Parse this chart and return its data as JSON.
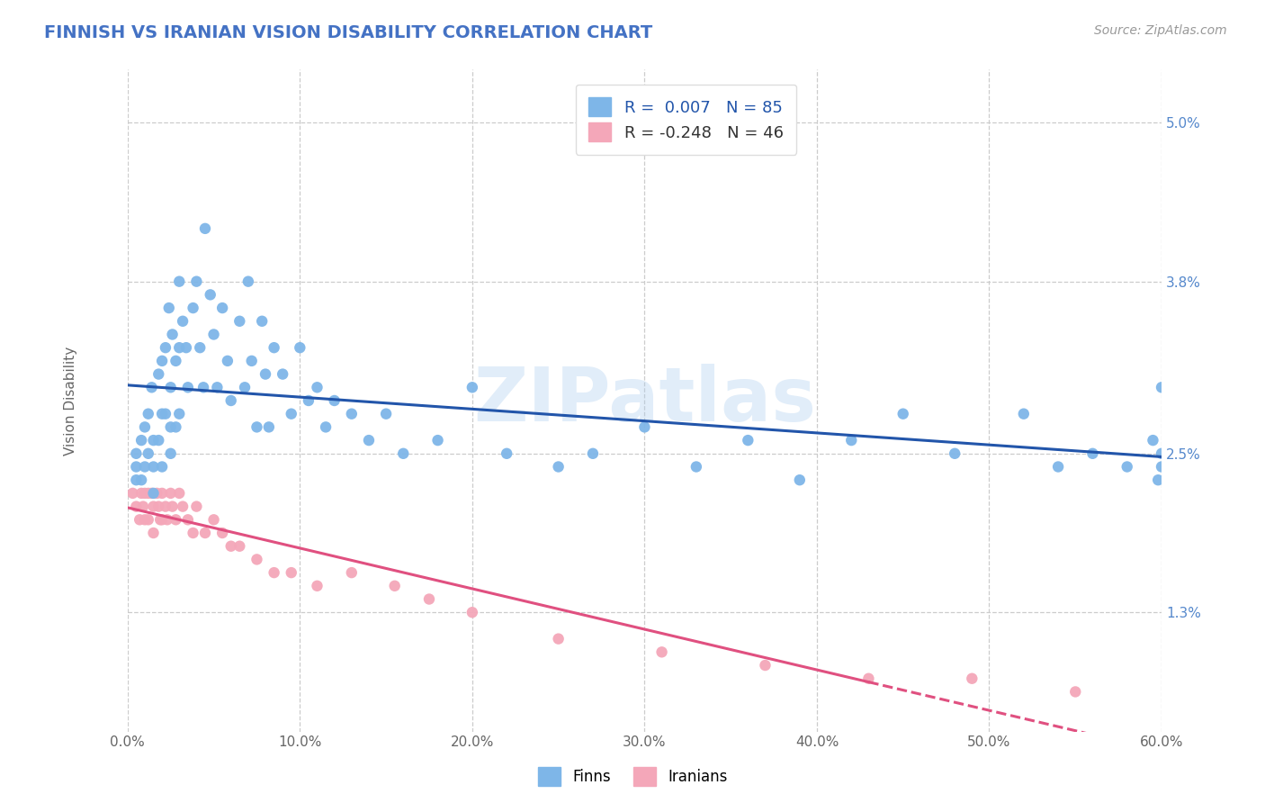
{
  "title": "FINNISH VS IRANIAN VISION DISABILITY CORRELATION CHART",
  "source": "Source: ZipAtlas.com",
  "ylabel": "Vision Disability",
  "xlim": [
    0.0,
    0.6
  ],
  "ylim": [
    0.004,
    0.054
  ],
  "yticks": [
    0.013,
    0.025,
    0.038,
    0.05
  ],
  "ytick_labels": [
    "1.3%",
    "2.5%",
    "3.8%",
    "5.0%"
  ],
  "xticks": [
    0.0,
    0.1,
    0.2,
    0.3,
    0.4,
    0.5,
    0.6
  ],
  "xtick_labels": [
    "0.0%",
    "10.0%",
    "20.0%",
    "30.0%",
    "40.0%",
    "50.0%",
    "60.0%"
  ],
  "finns_color": "#7EB6E8",
  "iranians_color": "#F4A7B9",
  "finn_line_color": "#2255AA",
  "iranian_line_color": "#E05080",
  "R_finn": 0.007,
  "N_finn": 85,
  "R_iran": -0.248,
  "N_iran": 46,
  "background_color": "#FFFFFF",
  "grid_color": "#CCCCCC",
  "title_color": "#4472C4",
  "finns_scatter_x": [
    0.005,
    0.005,
    0.005,
    0.008,
    0.008,
    0.01,
    0.01,
    0.012,
    0.012,
    0.014,
    0.015,
    0.015,
    0.015,
    0.018,
    0.018,
    0.02,
    0.02,
    0.02,
    0.022,
    0.022,
    0.024,
    0.025,
    0.025,
    0.025,
    0.026,
    0.028,
    0.028,
    0.03,
    0.03,
    0.03,
    0.032,
    0.034,
    0.035,
    0.038,
    0.04,
    0.042,
    0.044,
    0.045,
    0.048,
    0.05,
    0.052,
    0.055,
    0.058,
    0.06,
    0.065,
    0.068,
    0.07,
    0.072,
    0.075,
    0.078,
    0.08,
    0.082,
    0.085,
    0.09,
    0.095,
    0.1,
    0.105,
    0.11,
    0.115,
    0.12,
    0.13,
    0.14,
    0.15,
    0.16,
    0.18,
    0.2,
    0.22,
    0.25,
    0.27,
    0.3,
    0.33,
    0.36,
    0.39,
    0.42,
    0.45,
    0.48,
    0.52,
    0.54,
    0.56,
    0.58,
    0.595,
    0.598,
    0.6,
    0.6,
    0.6
  ],
  "finns_scatter_y": [
    0.025,
    0.024,
    0.023,
    0.026,
    0.023,
    0.027,
    0.024,
    0.028,
    0.025,
    0.03,
    0.026,
    0.024,
    0.022,
    0.031,
    0.026,
    0.032,
    0.028,
    0.024,
    0.033,
    0.028,
    0.036,
    0.03,
    0.027,
    0.025,
    0.034,
    0.032,
    0.027,
    0.038,
    0.033,
    0.028,
    0.035,
    0.033,
    0.03,
    0.036,
    0.038,
    0.033,
    0.03,
    0.042,
    0.037,
    0.034,
    0.03,
    0.036,
    0.032,
    0.029,
    0.035,
    0.03,
    0.038,
    0.032,
    0.027,
    0.035,
    0.031,
    0.027,
    0.033,
    0.031,
    0.028,
    0.033,
    0.029,
    0.03,
    0.027,
    0.029,
    0.028,
    0.026,
    0.028,
    0.025,
    0.026,
    0.03,
    0.025,
    0.024,
    0.025,
    0.027,
    0.024,
    0.026,
    0.023,
    0.026,
    0.028,
    0.025,
    0.028,
    0.024,
    0.025,
    0.024,
    0.026,
    0.023,
    0.024,
    0.03,
    0.025
  ],
  "iranians_scatter_x": [
    0.003,
    0.005,
    0.007,
    0.008,
    0.009,
    0.01,
    0.01,
    0.012,
    0.012,
    0.014,
    0.015,
    0.015,
    0.017,
    0.018,
    0.019,
    0.02,
    0.02,
    0.022,
    0.023,
    0.025,
    0.026,
    0.028,
    0.03,
    0.032,
    0.035,
    0.038,
    0.04,
    0.045,
    0.05,
    0.055,
    0.06,
    0.065,
    0.075,
    0.085,
    0.095,
    0.11,
    0.13,
    0.155,
    0.175,
    0.2,
    0.25,
    0.31,
    0.37,
    0.43,
    0.49,
    0.55
  ],
  "iranians_scatter_y": [
    0.022,
    0.021,
    0.02,
    0.022,
    0.021,
    0.022,
    0.02,
    0.022,
    0.02,
    0.022,
    0.021,
    0.019,
    0.022,
    0.021,
    0.02,
    0.022,
    0.02,
    0.021,
    0.02,
    0.022,
    0.021,
    0.02,
    0.022,
    0.021,
    0.02,
    0.019,
    0.021,
    0.019,
    0.02,
    0.019,
    0.018,
    0.018,
    0.017,
    0.016,
    0.016,
    0.015,
    0.016,
    0.015,
    0.014,
    0.013,
    0.011,
    0.01,
    0.009,
    0.008,
    0.008,
    0.007
  ]
}
